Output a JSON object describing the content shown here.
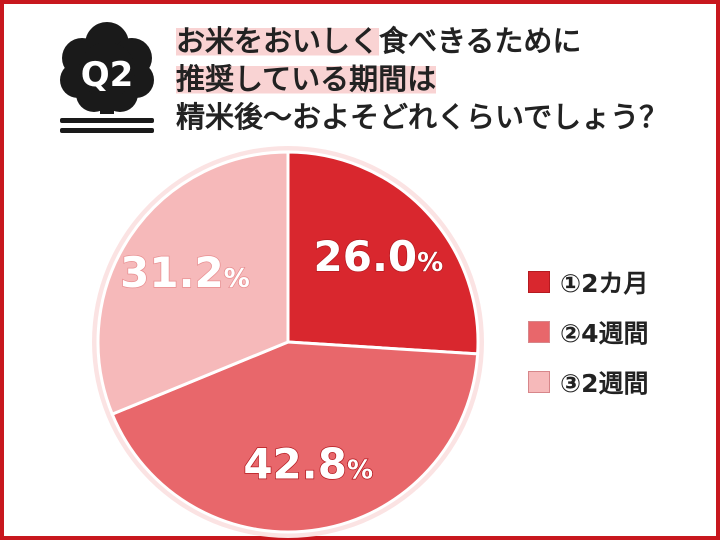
{
  "badge": {
    "text": "Q2"
  },
  "title": {
    "line1_highlight": "お米をおいしく",
    "line1_rest": "食べきるために",
    "line2": "推奨している期間は",
    "line3": "精米後〜およそどれくらいでしょう？"
  },
  "chart_data": {
    "type": "pie",
    "categories": [
      "①2カ月",
      "②4週間",
      "③2週間"
    ],
    "values": [
      26.0,
      42.8,
      31.2
    ],
    "value_labels": [
      "26.0",
      "42.8",
      "31.2"
    ],
    "unit": "%",
    "colors": [
      "#d9272e",
      "#e8676b",
      "#f6b9ba"
    ],
    "start_angle_deg": 0,
    "direction": "clockwise",
    "legend_position": "right"
  }
}
